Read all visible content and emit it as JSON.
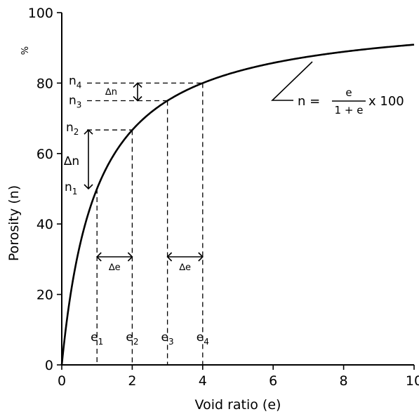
{
  "chart_data": {
    "type": "line",
    "xlabel": "Void ratio (e)",
    "ylabel": "Porosity (n)",
    "y_unit": "%",
    "xlim": [
      0,
      10
    ],
    "ylim": [
      0,
      100
    ],
    "x_ticks": [
      "0",
      "2",
      "4",
      "6",
      "8",
      "10"
    ],
    "y_ticks": [
      "0",
      "20",
      "40",
      "60",
      "80",
      "100"
    ],
    "grid": false,
    "series": [
      {
        "formula": "n = e/(1+e) x 100",
        "x": [
          0,
          0.25,
          0.5,
          0.75,
          1,
          1.5,
          2,
          2.5,
          3,
          3.5,
          4,
          5,
          6,
          7,
          8,
          9,
          10
        ],
        "y": [
          0,
          20,
          33.3,
          42.9,
          50,
          60,
          66.7,
          71.4,
          75,
          77.8,
          80,
          83.3,
          85.7,
          87.5,
          88.9,
          90,
          90.9
        ]
      }
    ],
    "annotations": {
      "equation": {
        "lhs": "n =",
        "numerator": "e",
        "denominator": "1 + e",
        "suffix": "x 100"
      },
      "e_markers": [
        {
          "label": "e",
          "sub": "1",
          "x": 1
        },
        {
          "label": "e",
          "sub": "2",
          "x": 2
        },
        {
          "label": "e",
          "sub": "3",
          "x": 3
        },
        {
          "label": "e",
          "sub": "4",
          "x": 4
        }
      ],
      "n_markers": [
        {
          "label": "n",
          "sub": "1",
          "y": 50
        },
        {
          "label": "n",
          "sub": "2",
          "y": 66.7
        },
        {
          "label": "n",
          "sub": "3",
          "y": 75
        },
        {
          "label": "n",
          "sub": "4",
          "y": 80
        }
      ],
      "delta_n_label": "∆n",
      "delta_e_label": "∆e"
    }
  }
}
